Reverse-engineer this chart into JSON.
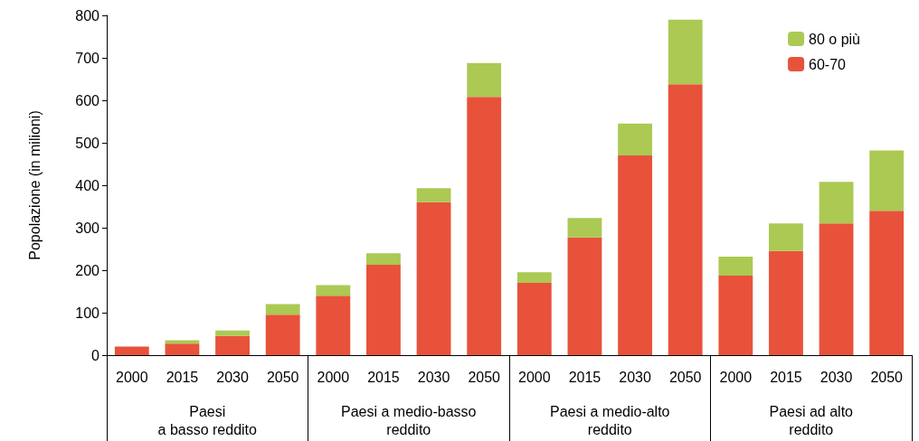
{
  "chart_data": {
    "type": "bar",
    "stacked": true,
    "ylabel": "Popolazione (in milioni)",
    "categories": [
      "2000",
      "2015",
      "2030",
      "2050",
      "2000",
      "2015",
      "2030",
      "2050",
      "2000",
      "2015",
      "2030",
      "2050",
      "2000",
      "2015",
      "2030",
      "2050"
    ],
    "annotations": [
      "Paesi\na basso reddito",
      "Paesi a medio-basso\nreddito",
      "Paesi a medio-alto\nreddito",
      "Paesi ad alto\nreddito"
    ],
    "series": [
      {
        "name": "60-70",
        "color": "#e8523a",
        "values": [
          20,
          27,
          45,
          95,
          140,
          213,
          360,
          608,
          170,
          277,
          470,
          638,
          187,
          245,
          310,
          340
        ]
      },
      {
        "name": "80 o più",
        "color": "#abc953",
        "values": [
          0,
          8,
          13,
          25,
          25,
          27,
          33,
          80,
          25,
          46,
          75,
          152,
          45,
          65,
          98,
          142
        ]
      }
    ],
    "ylim": [
      0,
      800
    ],
    "yticks": [
      0,
      100,
      200,
      300,
      400,
      500,
      600,
      700,
      800
    ],
    "grid": false,
    "legend": "top right"
  }
}
